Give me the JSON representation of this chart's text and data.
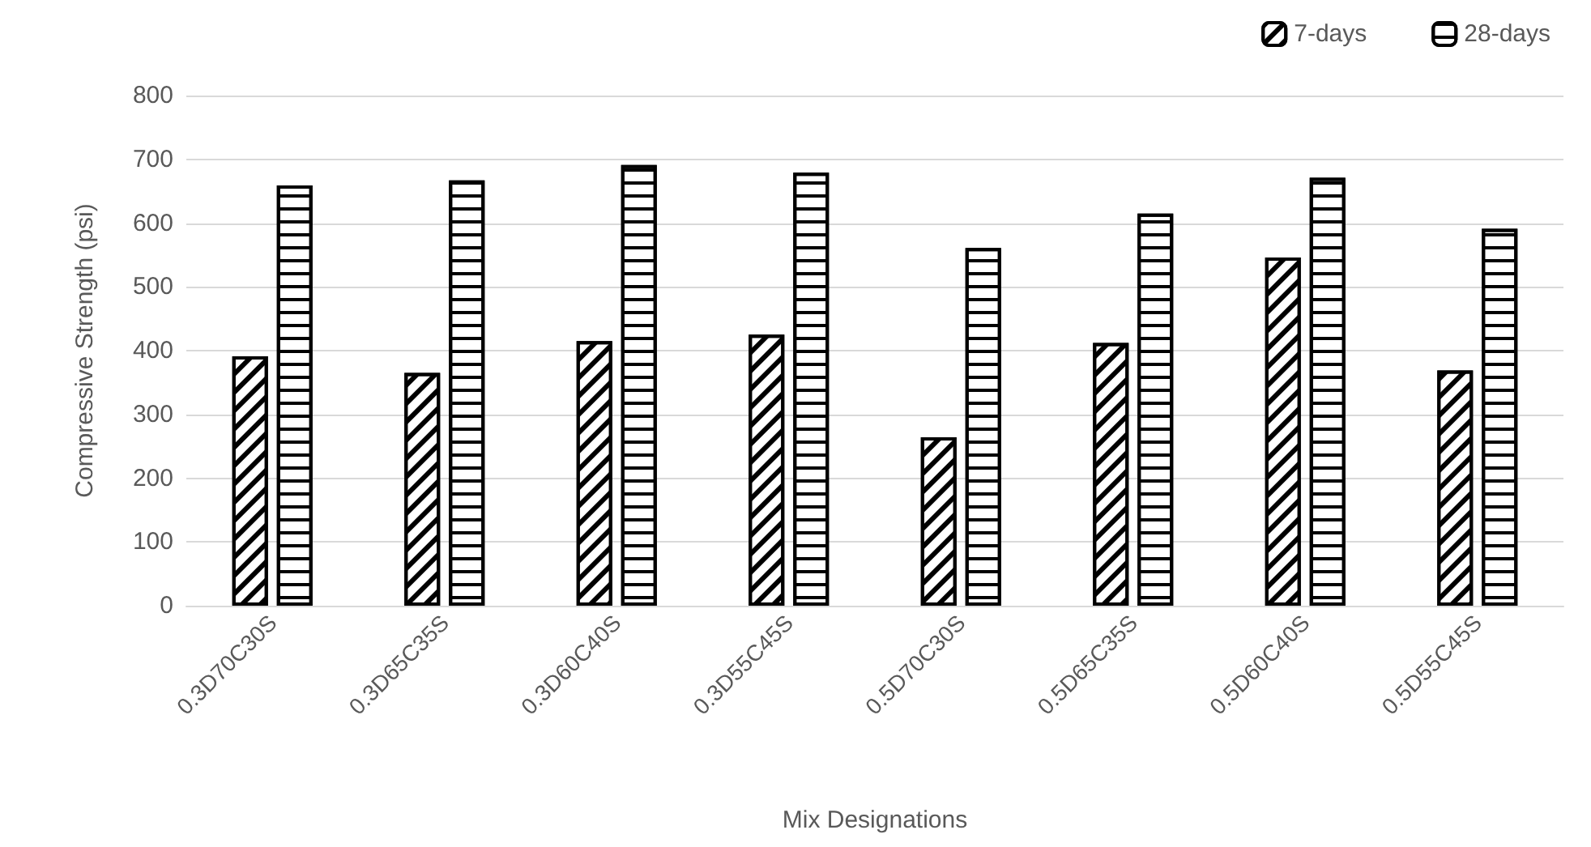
{
  "chart_data": {
    "type": "bar",
    "xlabel": "Mix Designations",
    "ylabel": "Compressive Strength (psi)",
    "categories": [
      "0.3D70C30S",
      "0.3D65C35S",
      "0.3D60C40S",
      "0.3D55C45S",
      "0.5D70C30S",
      "0.5D65C35S",
      "0.5D60C40S",
      "0.5D55C45S"
    ],
    "series": [
      {
        "name": "7-days",
        "color": "#000000",
        "values": [
          391,
          365,
          415,
          425,
          264,
          412,
          546,
          369
        ]
      },
      {
        "name": "28-days",
        "color": "#000000",
        "values": [
          659,
          667,
          691,
          679,
          561,
          615,
          671,
          591
        ]
      }
    ],
    "ylim": [
      0,
      800
    ],
    "yticks": [
      0,
      100,
      200,
      300,
      400,
      500,
      600,
      700,
      800
    ],
    "grid": "y",
    "legend": "top right"
  }
}
